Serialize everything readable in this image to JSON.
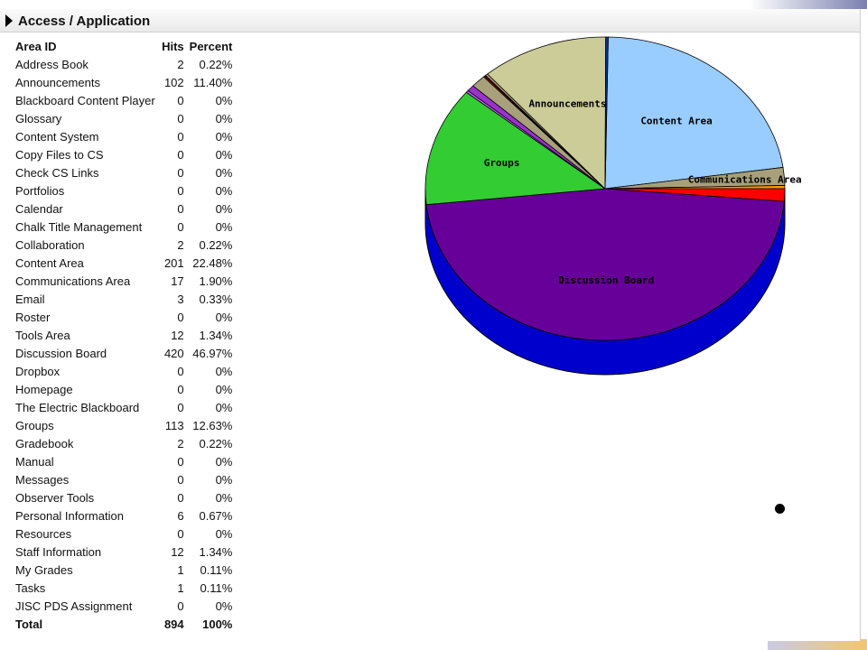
{
  "header": {
    "title": "Access / Application"
  },
  "table": {
    "columns": [
      "Area ID",
      "Hits",
      "Percent"
    ],
    "rows": [
      {
        "name": "Address Book",
        "hits": "2",
        "percent": "0.22%"
      },
      {
        "name": "Announcements",
        "hits": "102",
        "percent": "11.40%"
      },
      {
        "name": "Blackboard Content Player",
        "hits": "0",
        "percent": "0%"
      },
      {
        "name": "Glossary",
        "hits": "0",
        "percent": "0%"
      },
      {
        "name": "Content System",
        "hits": "0",
        "percent": "0%"
      },
      {
        "name": "Copy Files to CS",
        "hits": "0",
        "percent": "0%"
      },
      {
        "name": "Check CS Links",
        "hits": "0",
        "percent": "0%"
      },
      {
        "name": "Portfolios",
        "hits": "0",
        "percent": "0%"
      },
      {
        "name": "Calendar",
        "hits": "0",
        "percent": "0%"
      },
      {
        "name": "Chalk Title Management",
        "hits": "0",
        "percent": "0%"
      },
      {
        "name": "Collaboration",
        "hits": "2",
        "percent": "0.22%"
      },
      {
        "name": "Content Area",
        "hits": "201",
        "percent": "22.48%"
      },
      {
        "name": "Communications Area",
        "hits": "17",
        "percent": "1.90%"
      },
      {
        "name": "Email",
        "hits": "3",
        "percent": "0.33%"
      },
      {
        "name": "Roster",
        "hits": "0",
        "percent": "0%"
      },
      {
        "name": "Tools Area",
        "hits": "12",
        "percent": "1.34%"
      },
      {
        "name": "Discussion Board",
        "hits": "420",
        "percent": "46.97%"
      },
      {
        "name": "Dropbox",
        "hits": "0",
        "percent": "0%"
      },
      {
        "name": "Homepage",
        "hits": "0",
        "percent": "0%"
      },
      {
        "name": "The Electric Blackboard",
        "hits": "0",
        "percent": "0%"
      },
      {
        "name": "Groups",
        "hits": "113",
        "percent": "12.63%"
      },
      {
        "name": "Gradebook",
        "hits": "2",
        "percent": "0.22%"
      },
      {
        "name": "Manual",
        "hits": "0",
        "percent": "0%"
      },
      {
        "name": "Messages",
        "hits": "0",
        "percent": "0%"
      },
      {
        "name": "Observer Tools",
        "hits": "0",
        "percent": "0%"
      },
      {
        "name": "Personal Information",
        "hits": "6",
        "percent": "0.67%"
      },
      {
        "name": "Resources",
        "hits": "0",
        "percent": "0%"
      },
      {
        "name": "Staff Information",
        "hits": "12",
        "percent": "1.34%"
      },
      {
        "name": "My Grades",
        "hits": "1",
        "percent": "0.11%"
      },
      {
        "name": "Tasks",
        "hits": "1",
        "percent": "0.11%"
      },
      {
        "name": "JISC PDS Assignment",
        "hits": "0",
        "percent": "0%"
      }
    ],
    "total": {
      "name": "Total",
      "hits": "894",
      "percent": "100%"
    }
  },
  "chart_data": {
    "type": "pie",
    "title": "",
    "slices": [
      {
        "label": "Content Area",
        "value": 201,
        "color": "#99ccff",
        "show_label": true
      },
      {
        "label": "Communications Area",
        "value": 17,
        "color": "#a8a07a",
        "show_label": true
      },
      {
        "label": "Email",
        "value": 3,
        "color": "#ff9900",
        "show_label": false
      },
      {
        "label": "Tools Area",
        "value": 12,
        "color": "#ff0000",
        "show_label": false
      },
      {
        "label": "Discussion Board",
        "value": 420,
        "color": "#660099",
        "show_label": true
      },
      {
        "label": "Groups",
        "value": 113,
        "color": "#33cc33",
        "show_label": true
      },
      {
        "label": "Gradebook",
        "value": 2,
        "color": "#cc66ff",
        "show_label": false
      },
      {
        "label": "Personal Information",
        "value": 6,
        "color": "#9933cc",
        "show_label": false
      },
      {
        "label": "Staff Information",
        "value": 12,
        "color": "#a8a07a",
        "show_label": false
      },
      {
        "label": "My Grades",
        "value": 1,
        "color": "#ff3300",
        "show_label": false
      },
      {
        "label": "Tasks",
        "value": 1,
        "color": "#cc0000",
        "show_label": false
      },
      {
        "label": "Address Book",
        "value": 2,
        "color": "#a8a07a",
        "show_label": false
      },
      {
        "label": "Announcements",
        "value": 102,
        "color": "#cccc99",
        "show_label": true
      },
      {
        "label": "Collaboration",
        "value": 2,
        "color": "#003399",
        "show_label": false
      }
    ],
    "side_color": "#0000cc"
  }
}
